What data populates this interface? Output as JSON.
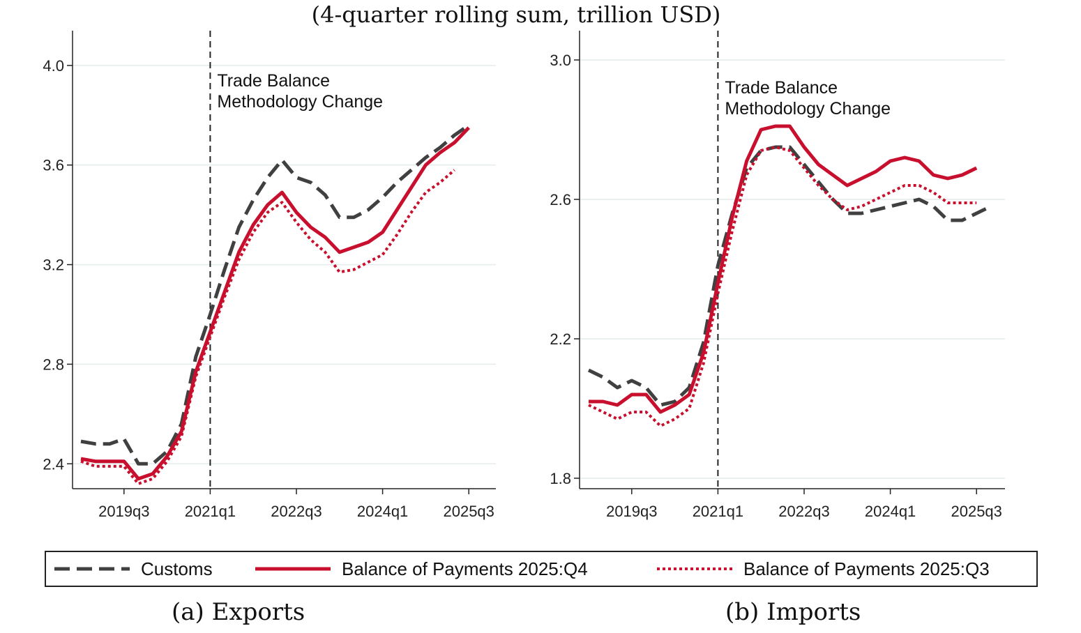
{
  "subtitle": "(4-quarter rolling sum, trillion USD)",
  "annotation": [
    "Trade Balance",
    "Methodology Change"
  ],
  "legend": [
    {
      "label": "Customs",
      "color": "#404040",
      "style": "dashed"
    },
    {
      "label": "Balance of Payments 2025:Q4",
      "color": "#c8102e",
      "style": "solid"
    },
    {
      "label": "Balance of Payments 2025:Q3",
      "color": "#c8102e",
      "style": "dotted"
    }
  ],
  "chart_data": [
    {
      "type": "line",
      "caption": "(a) Exports",
      "x_quarters": [
        "2018q4",
        "2019q1",
        "2019q2",
        "2019q3",
        "2019q4",
        "2020q1",
        "2020q2",
        "2020q3",
        "2020q4",
        "2021q1",
        "2021q2",
        "2021q3",
        "2021q4",
        "2022q1",
        "2022q2",
        "2022q3",
        "2022q4",
        "2023q1",
        "2023q2",
        "2023q3",
        "2023q4",
        "2024q1",
        "2024q2",
        "2024q3",
        "2024q4",
        "2025q1",
        "2025q2",
        "2025q3",
        "2025q4"
      ],
      "x_ticks": [
        "2019q3",
        "2021q1",
        "2022q3",
        "2024q1",
        "2025q3"
      ],
      "y_ticks": [
        "2.4",
        "2.8",
        "3.2",
        "3.6",
        "4.0"
      ],
      "ylim": [
        2.3,
        4.05
      ],
      "vline": "2021q1",
      "series": [
        {
          "name": "Customs",
          "values": [
            2.49,
            2.48,
            2.48,
            2.5,
            2.4,
            2.4,
            2.45,
            2.56,
            2.83,
            3.0,
            3.18,
            3.35,
            3.46,
            3.55,
            3.62,
            3.55,
            3.53,
            3.48,
            3.39,
            3.39,
            3.42,
            3.47,
            3.53,
            3.58,
            3.63,
            3.67,
            3.72,
            3.76,
            null
          ]
        },
        {
          "name": "Balance of Payments 2025:Q4",
          "values": [
            2.42,
            2.41,
            2.41,
            2.41,
            2.34,
            2.36,
            2.43,
            2.53,
            2.77,
            2.93,
            3.09,
            3.25,
            3.36,
            3.44,
            3.49,
            3.41,
            3.35,
            3.31,
            3.25,
            3.27,
            3.29,
            3.33,
            3.42,
            3.51,
            3.6,
            3.65,
            3.69,
            3.75,
            null
          ]
        },
        {
          "name": "Balance of Payments 2025:Q3",
          "values": [
            2.41,
            2.39,
            2.39,
            2.39,
            2.32,
            2.34,
            2.41,
            2.51,
            2.75,
            2.91,
            3.07,
            3.22,
            3.33,
            3.41,
            3.45,
            3.37,
            3.3,
            3.25,
            3.17,
            3.18,
            3.21,
            3.24,
            3.32,
            3.41,
            3.49,
            3.53,
            3.58,
            null,
            null
          ]
        }
      ]
    },
    {
      "type": "line",
      "caption": "(b) Imports",
      "x_quarters": [
        "2018q4",
        "2019q1",
        "2019q2",
        "2019q3",
        "2019q4",
        "2020q1",
        "2020q2",
        "2020q3",
        "2020q4",
        "2021q1",
        "2021q2",
        "2021q3",
        "2021q4",
        "2022q1",
        "2022q2",
        "2022q3",
        "2022q4",
        "2023q1",
        "2023q2",
        "2023q3",
        "2023q4",
        "2024q1",
        "2024q2",
        "2024q3",
        "2024q4",
        "2025q1",
        "2025q2",
        "2025q3",
        "2025q4"
      ],
      "x_ticks": [
        "2019q3",
        "2021q1",
        "2022q3",
        "2024q1",
        "2025q3"
      ],
      "y_ticks": [
        "1.8",
        "2.2",
        "2.6",
        "3.0"
      ],
      "ylim": [
        1.77,
        3.02
      ],
      "vline": "2021q1",
      "series": [
        {
          "name": "Customs",
          "values": [
            2.11,
            2.09,
            2.06,
            2.08,
            2.06,
            2.01,
            2.02,
            2.06,
            2.19,
            2.41,
            2.56,
            2.69,
            2.74,
            2.75,
            2.75,
            2.7,
            2.65,
            2.6,
            2.56,
            2.56,
            2.57,
            2.58,
            2.59,
            2.6,
            2.58,
            2.54,
            2.54,
            2.56,
            2.58
          ]
        },
        {
          "name": "Balance of Payments 2025:Q4",
          "values": [
            2.02,
            2.02,
            2.01,
            2.04,
            2.04,
            1.99,
            2.01,
            2.04,
            2.16,
            2.36,
            2.55,
            2.71,
            2.8,
            2.81,
            2.81,
            2.75,
            2.7,
            2.67,
            2.64,
            2.66,
            2.68,
            2.71,
            2.72,
            2.71,
            2.67,
            2.66,
            2.67,
            2.69,
            null
          ]
        },
        {
          "name": "Balance of Payments 2025:Q3",
          "values": [
            2.01,
            1.99,
            1.97,
            1.99,
            1.99,
            1.95,
            1.97,
            2.0,
            2.13,
            2.33,
            2.51,
            2.67,
            2.74,
            2.75,
            2.74,
            2.69,
            2.64,
            2.6,
            2.57,
            2.58,
            2.6,
            2.62,
            2.64,
            2.64,
            2.62,
            2.59,
            2.59,
            2.59,
            null
          ]
        }
      ]
    }
  ]
}
